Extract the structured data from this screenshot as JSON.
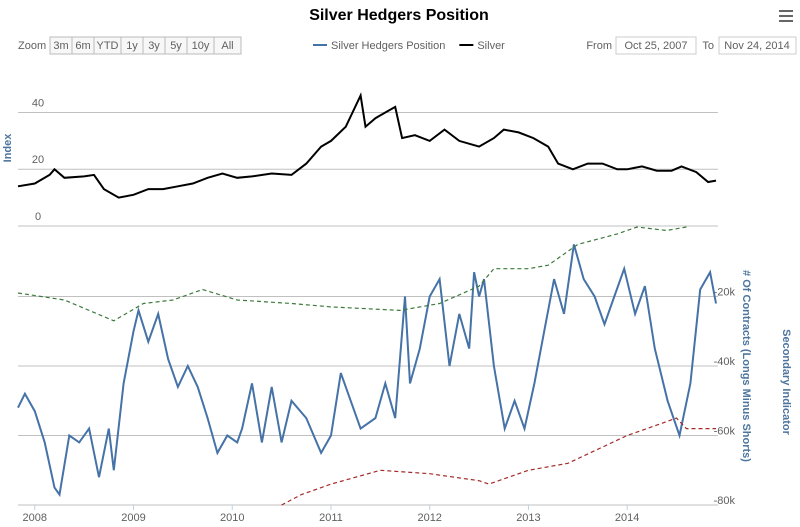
{
  "chart_data": {
    "type": "line",
    "title": "Silver Hedgers Position",
    "range_selector": {
      "label": "Zoom",
      "buttons": [
        "3m",
        "6m",
        "YTD",
        "1y",
        "3y",
        "5y",
        "10y",
        "All"
      ]
    },
    "date_range": {
      "from_label": "From",
      "from": "Oct 25, 2007",
      "to_label": "To",
      "to": "Nov 24, 2014"
    },
    "y_label": "Index",
    "y2_label": "# Of Contracts (Longs Minus Shorts)",
    "y3_label": "Secondary Indicator",
    "xlim": [
      2007.83,
      2014.92
    ],
    "xticks": [
      2008,
      2009,
      2010,
      2011,
      2012,
      2013,
      2014
    ],
    "ylim": [
      0,
      55
    ],
    "yticks": [
      0,
      20,
      40
    ],
    "y2lim": [
      -80000,
      0
    ],
    "y2ticks": [
      {
        "value": -20000,
        "label": "-20k"
      },
      {
        "value": -40000,
        "label": "-40k"
      },
      {
        "value": -60000,
        "label": "-60k"
      },
      {
        "value": -80000,
        "label": "-80k"
      }
    ],
    "grid": true,
    "series": [
      {
        "name": "Silver Hedgers Position",
        "color": "#4572a7",
        "axis": "y2",
        "x": [
          2007.83,
          2007.9,
          2008.0,
          2008.1,
          2008.2,
          2008.25,
          2008.35,
          2008.45,
          2008.55,
          2008.65,
          2008.75,
          2008.8,
          2008.9,
          2009.0,
          2009.05,
          2009.15,
          2009.25,
          2009.35,
          2009.45,
          2009.55,
          2009.65,
          2009.75,
          2009.85,
          2009.95,
          2010.05,
          2010.1,
          2010.2,
          2010.3,
          2010.4,
          2010.5,
          2010.6,
          2010.75,
          2010.9,
          2011.0,
          2011.1,
          2011.2,
          2011.3,
          2011.45,
          2011.55,
          2011.65,
          2011.75,
          2011.8,
          2011.9,
          2012.0,
          2012.1,
          2012.2,
          2012.3,
          2012.4,
          2012.45,
          2012.5,
          2012.55,
          2012.65,
          2012.76,
          2012.86,
          2012.96,
          2013.06,
          2013.16,
          2013.26,
          2013.36,
          2013.46,
          2013.56,
          2013.67,
          2013.77,
          2013.87,
          2013.97,
          2014.08,
          2014.18,
          2014.28,
          2014.41,
          2014.53,
          2014.64,
          2014.74,
          2014.84,
          2014.9
        ],
        "values": [
          -52000,
          -48000,
          -53000,
          -62000,
          -75000,
          -77000,
          -60000,
          -62000,
          -58000,
          -72000,
          -58000,
          -70000,
          -45000,
          -30000,
          -24000,
          -33000,
          -25000,
          -38000,
          -46000,
          -40000,
          -46000,
          -55000,
          -65000,
          -60000,
          -62000,
          -58000,
          -45000,
          -62000,
          -46000,
          -62000,
          -50000,
          -55000,
          -65000,
          -60000,
          -42000,
          -50000,
          -58000,
          -55000,
          -45000,
          -55000,
          -20000,
          -45000,
          -35000,
          -20000,
          -15000,
          -40000,
          -25000,
          -35000,
          -13000,
          -20000,
          -15000,
          -40000,
          -58000,
          -50000,
          -58000,
          -45000,
          -30000,
          -15000,
          -25000,
          -5000,
          -15000,
          -20000,
          -28000,
          -20000,
          -12000,
          -25000,
          -17000,
          -35000,
          -50000,
          -60000,
          -45000,
          -18000,
          -13000,
          -22000
        ]
      },
      {
        "name": "Silver",
        "color": "#000000",
        "x": [
          2007.83,
          2008.0,
          2008.15,
          2008.2,
          2008.3,
          2008.5,
          2008.6,
          2008.7,
          2008.85,
          2009.0,
          2009.15,
          2009.3,
          2009.45,
          2009.6,
          2009.75,
          2009.9,
          2010.05,
          2010.2,
          2010.4,
          2010.6,
          2010.75,
          2010.9,
          2011.0,
          2011.15,
          2011.3,
          2011.35,
          2011.45,
          2011.55,
          2011.65,
          2011.72,
          2011.85,
          2012.0,
          2012.15,
          2012.3,
          2012.5,
          2012.65,
          2012.75,
          2012.9,
          2013.05,
          2013.2,
          2013.3,
          2013.45,
          2013.6,
          2013.75,
          2013.9,
          2014.0,
          2014.15,
          2014.3,
          2014.45,
          2014.55,
          2014.7,
          2014.82,
          2014.9
        ],
        "values": [
          14,
          15,
          18,
          20,
          17,
          17.5,
          18,
          13,
          10,
          11,
          13,
          13,
          14,
          15,
          17,
          18.5,
          17,
          17.5,
          18.5,
          18,
          22,
          28,
          30,
          35,
          46,
          35,
          38,
          40,
          42,
          31,
          32,
          30,
          34,
          30,
          28,
          31,
          34,
          33,
          31,
          28,
          22,
          20,
          22,
          22,
          20,
          20,
          21,
          19.5,
          19.5,
          21,
          19,
          15.5,
          16
        ]
      },
      {
        "color": "#3d7a3d",
        "axis": "y2",
        "dashed": true,
        "x": [
          2007.83,
          2008.3,
          2008.8,
          2009.1,
          2009.4,
          2009.7,
          2010.05,
          2010.6,
          2011.0,
          2011.7,
          2012.1,
          2012.5,
          2012.65,
          2013.0,
          2013.2,
          2013.5,
          2013.9,
          2014.1,
          2014.4,
          2014.6
        ],
        "values": [
          -19000,
          -21000,
          -27000,
          -22000,
          -21000,
          -18000,
          -21000,
          -22000,
          -23000,
          -24000,
          -22000,
          -17000,
          -12000,
          -12000,
          -11000,
          -5000,
          -2000,
          0,
          -1000,
          0
        ]
      },
      {
        "color": "#a52a2a",
        "axis": "y2",
        "dashed": true,
        "x": [
          2010.5,
          2010.7,
          2011.0,
          2011.5,
          2012.0,
          2012.5,
          2012.6,
          2013.0,
          2013.4,
          2013.7,
          2014.0,
          2014.3,
          2014.5,
          2014.6,
          2014.9
        ],
        "values": [
          -80000,
          -77000,
          -74000,
          -70000,
          -71000,
          -73000,
          -74000,
          -70000,
          -68000,
          -64000,
          -60000,
          -57000,
          -55000,
          -58000,
          -58000
        ]
      }
    ]
  }
}
